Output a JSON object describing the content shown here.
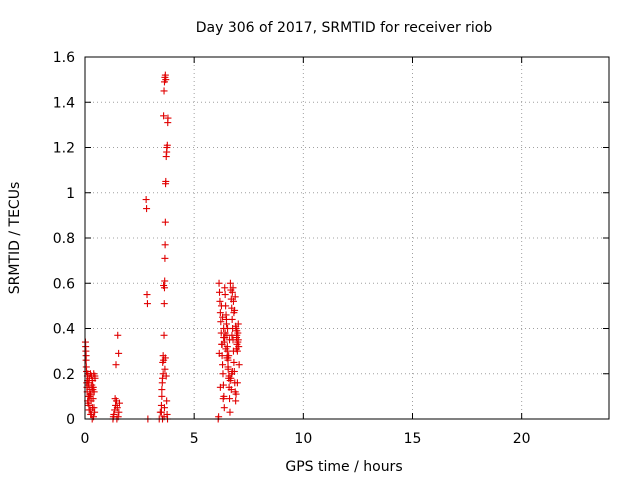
{
  "chart_data": {
    "type": "scatter",
    "title": "Day 306 of 2017, SRMTID for receiver riob",
    "xlabel": "GPS time / hours",
    "ylabel": "SRMTID / TECUs",
    "xlim": [
      0,
      24
    ],
    "ylim": [
      0,
      1.6
    ],
    "xticks": [
      0,
      5,
      10,
      15,
      20
    ],
    "xtick_labels": [
      "0",
      "5",
      "10",
      "15",
      "20"
    ],
    "yticks": [
      0,
      0.2,
      0.4,
      0.6,
      0.8,
      1.0,
      1.2,
      1.4,
      1.6
    ],
    "ytick_labels": [
      "0",
      "0.2",
      "0.4",
      "0.6",
      "0.8",
      "1",
      "1.2",
      "1.4",
      "1.6"
    ],
    "grid": true,
    "marker": "+",
    "color": "#e00000",
    "series": [
      {
        "name": "SRMTID",
        "x": [
          0.02,
          0.04,
          0.05,
          0.07,
          0.08,
          0.1,
          0.12,
          0.13,
          0.15,
          0.16,
          0.18,
          0.2,
          0.22,
          0.24,
          0.25,
          0.27,
          0.29,
          0.3,
          0.32,
          0.34,
          0.35,
          0.37,
          0.39,
          0.4,
          0.42,
          0.44,
          0.46,
          0.03,
          0.06,
          0.09,
          0.11,
          0.14,
          0.17,
          0.21,
          0.26,
          0.31,
          0.36,
          0.41,
          0.45,
          0.05,
          0.12,
          0.19,
          0.23,
          0.28,
          0.33,
          0.38,
          1.28,
          1.32,
          1.36,
          1.4,
          1.44,
          1.48,
          1.52,
          1.55,
          1.58,
          1.3,
          1.38,
          1.46,
          1.5,
          1.54,
          1.42,
          2.8,
          2.82,
          2.84,
          2.86,
          2.88,
          3.4,
          3.45,
          3.5,
          3.52,
          3.55,
          3.58,
          3.6,
          3.62,
          3.63,
          3.64,
          3.65,
          3.66,
          3.67,
          3.68,
          3.69,
          3.7,
          3.72,
          3.74,
          3.75,
          3.77,
          3.79,
          3.8,
          3.6,
          3.62,
          3.64,
          3.66,
          3.68,
          3.7,
          3.58,
          3.56,
          3.54,
          3.52,
          3.62,
          3.64,
          3.66,
          3.68,
          3.72,
          3.74,
          3.76,
          3.78,
          3.6,
          3.55,
          3.5,
          6.1,
          6.12,
          6.14,
          6.16,
          6.18,
          6.2,
          6.22,
          6.24,
          6.26,
          6.28,
          6.3,
          6.32,
          6.34,
          6.36,
          6.38,
          6.4,
          6.42,
          6.44,
          6.46,
          6.48,
          6.5,
          6.52,
          6.54,
          6.56,
          6.58,
          6.6,
          6.62,
          6.64,
          6.66,
          6.68,
          6.7,
          6.72,
          6.74,
          6.76,
          6.78,
          6.8,
          6.82,
          6.84,
          6.86,
          6.88,
          6.9,
          6.92,
          6.94,
          6.96,
          6.98,
          7.0,
          7.02,
          7.04,
          7.06,
          6.2,
          6.25,
          6.3,
          6.35,
          6.4,
          6.45,
          6.5,
          6.55,
          6.6,
          6.65,
          6.7,
          6.75,
          6.8,
          6.85,
          6.9,
          6.95,
          7.0,
          6.15,
          6.35,
          6.55,
          6.75,
          6.95,
          6.28,
          6.48,
          6.68,
          6.88,
          6.42,
          6.62,
          6.82,
          7.02,
          6.52,
          6.72,
          6.92,
          6.38,
          6.58,
          6.78,
          6.98,
          6.33,
          6.53,
          6.73,
          6.93
        ],
        "y": [
          0.34,
          0.3,
          0.26,
          0.21,
          0.16,
          0.12,
          0.08,
          0.2,
          0.15,
          0.1,
          0.06,
          0.18,
          0.13,
          0.04,
          0.2,
          0.11,
          0.02,
          0.19,
          0.14,
          0.05,
          0.17,
          0.09,
          0.01,
          0.2,
          0.12,
          0.03,
          0.18,
          0.32,
          0.23,
          0.14,
          0.19,
          0.07,
          0.16,
          0.1,
          0.02,
          0.15,
          0.13,
          0.05,
          0.19,
          0.28,
          0.17,
          0.04,
          0.11,
          0.08,
          0.0,
          0.14,
          0.0,
          0.02,
          0.04,
          0.06,
          0.08,
          0.05,
          0.01,
          0.03,
          0.07,
          0.01,
          0.09,
          0.0,
          0.37,
          0.29,
          0.24,
          0.97,
          0.93,
          0.55,
          0.51,
          0.0,
          0.0,
          0.03,
          0.06,
          0.13,
          0.18,
          0.2,
          0.26,
          0.37,
          0.51,
          0.58,
          0.61,
          0.71,
          0.77,
          0.87,
          1.04,
          1.05,
          1.16,
          1.18,
          1.2,
          1.21,
          1.31,
          1.33,
          1.34,
          1.45,
          1.49,
          1.51,
          1.52,
          1.5,
          0.28,
          0.25,
          0.16,
          0.1,
          0.01,
          0.05,
          0.22,
          0.27,
          0.19,
          0.08,
          0.02,
          0.0,
          0.59,
          0.0,
          0.03,
          0.0,
          0.01,
          0.6,
          0.56,
          0.52,
          0.47,
          0.43,
          0.38,
          0.33,
          0.28,
          0.24,
          0.2,
          0.15,
          0.1,
          0.05,
          0.58,
          0.55,
          0.5,
          0.46,
          0.42,
          0.37,
          0.32,
          0.27,
          0.22,
          0.18,
          0.14,
          0.09,
          0.03,
          0.6,
          0.57,
          0.53,
          0.49,
          0.44,
          0.4,
          0.35,
          0.3,
          0.25,
          0.21,
          0.16,
          0.12,
          0.08,
          0.4,
          0.36,
          0.33,
          0.3,
          0.38,
          0.35,
          0.32,
          0.24,
          0.14,
          0.5,
          0.45,
          0.4,
          0.36,
          0.31,
          0.27,
          0.23,
          0.19,
          0.17,
          0.13,
          0.56,
          0.52,
          0.48,
          0.41,
          0.37,
          0.34,
          0.29,
          0.36,
          0.26,
          0.21,
          0.39,
          0.33,
          0.44,
          0.18,
          0.54,
          0.38,
          0.35,
          0.47,
          0.42,
          0.3,
          0.2,
          0.11,
          0.34,
          0.28,
          0.58,
          0.16,
          0.09,
          0.4,
          0.37,
          0.31
        ]
      }
    ]
  }
}
